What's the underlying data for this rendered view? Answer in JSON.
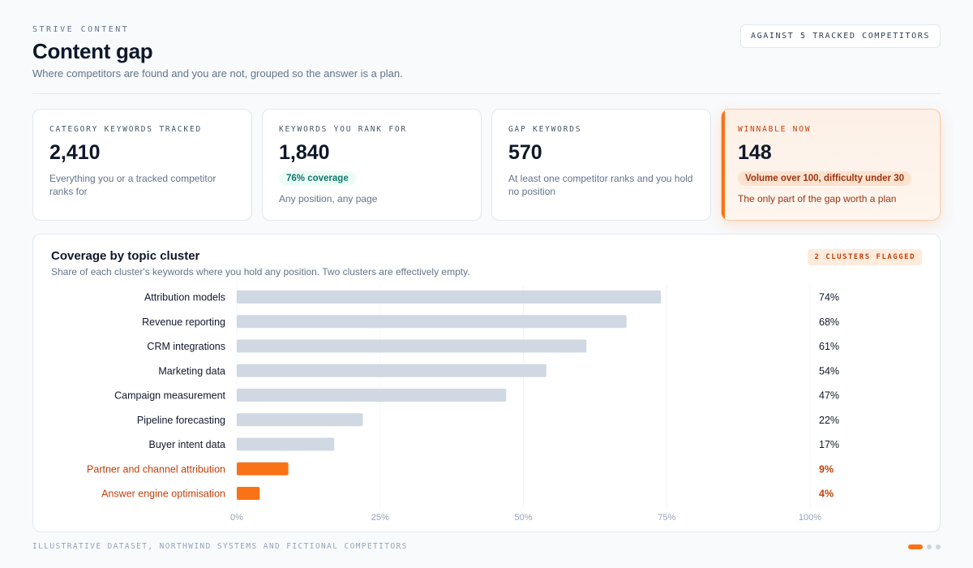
{
  "header": {
    "eyebrow": "STRIVE CONTENT",
    "title": "Content gap",
    "subtitle": "Where competitors are found and you are not, grouped so the answer is a plan.",
    "scope_badge": "AGAINST 5 TRACKED COMPETITORS"
  },
  "stats": [
    {
      "label": "CATEGORY KEYWORDS TRACKED",
      "value": "2,410",
      "description": "Everything you or a tracked competitor ranks for"
    },
    {
      "label": "KEYWORDS YOU RANK FOR",
      "value": "1,840",
      "pill": "76% coverage",
      "description": "Any position, any page"
    },
    {
      "label": "GAP KEYWORDS",
      "value": "570",
      "description": "At least one competitor ranks and you hold no position"
    },
    {
      "label": "WINNABLE NOW",
      "value": "148",
      "pill": "Volume over 100, difficulty under 30",
      "description": "The only part of the gap worth a plan"
    }
  ],
  "chart_card": {
    "flag_badge": "2 CLUSTERS FLAGGED"
  },
  "chart_data": {
    "type": "bar",
    "orientation": "horizontal",
    "title": "Coverage by topic cluster",
    "subtitle": "Share of each cluster's keywords where you hold any position. Two clusters are effectively empty.",
    "categories": [
      "Attribution models",
      "Revenue reporting",
      "CRM integrations",
      "Marketing data",
      "Campaign measurement",
      "Pipeline forecasting",
      "Buyer intent data",
      "Partner and channel attribution",
      "Answer engine optimisation"
    ],
    "values": [
      74,
      68,
      61,
      54,
      47,
      22,
      17,
      9,
      4
    ],
    "value_labels": [
      "74%",
      "68%",
      "61%",
      "54%",
      "47%",
      "22%",
      "17%",
      "9%",
      "4%"
    ],
    "flagged": [
      false,
      false,
      false,
      false,
      false,
      false,
      false,
      true,
      true
    ],
    "x_ticks": [
      0,
      25,
      50,
      75,
      100
    ],
    "x_tick_labels": [
      "0%",
      "25%",
      "50%",
      "75%",
      "100%"
    ],
    "xlim": [
      0,
      100
    ],
    "grid": true,
    "colors": {
      "normal_bar": "#cfd8e3",
      "flagged_bar": "#f97316",
      "flagged_text": "#c2410c",
      "text": "#0f172a",
      "tick": "#94a3b8",
      "grid": "#f1f5f9"
    }
  },
  "footer": {
    "note": "ILLUSTRATIVE DATASET, NORTHWIND SYSTEMS AND FICTIONAL COMPETITORS",
    "pages": 3,
    "active_page": 1
  }
}
